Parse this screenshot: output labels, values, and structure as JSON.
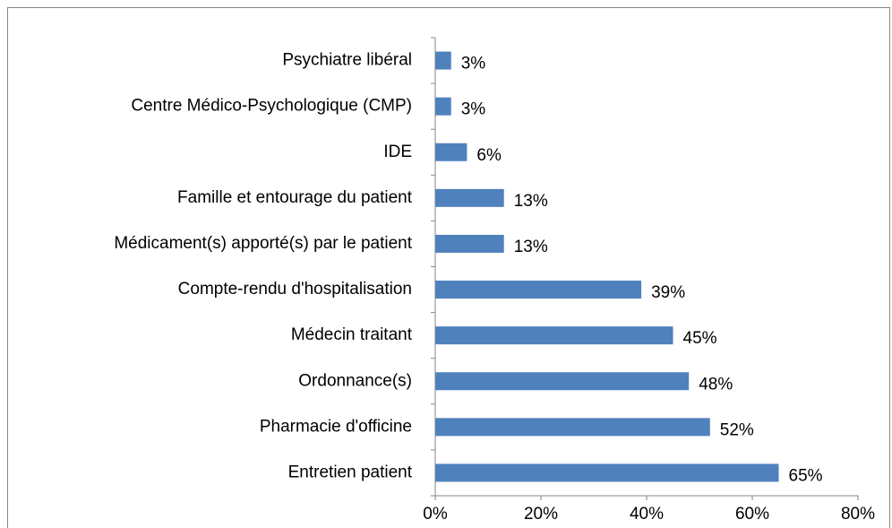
{
  "chart_data": {
    "type": "barh",
    "categories": [
      "Psychiatre libéral",
      "Centre Médico-Psychologique (CMP)",
      "IDE",
      "Famille et entourage du patient",
      "Médicament(s) apporté(s) par le patient",
      "Compte-rendu d'hospitalisation",
      "Médecin traitant",
      "Ordonnance(s)",
      "Pharmacie d'officine",
      "Entretien patient"
    ],
    "values": [
      3,
      3,
      6,
      13,
      13,
      39,
      45,
      48,
      52,
      65
    ],
    "value_labels": [
      "3%",
      "3%",
      "6%",
      "13%",
      "13%",
      "39%",
      "45%",
      "48%",
      "52%",
      "65%"
    ],
    "color": "#4f81bd",
    "xlim": [
      0,
      80
    ],
    "xticks": [
      {
        "value": 0,
        "label": "0%"
      },
      {
        "value": 20,
        "label": "20%"
      },
      {
        "value": 40,
        "label": "40%"
      },
      {
        "value": 60,
        "label": "60%"
      },
      {
        "value": 80,
        "label": "80%"
      }
    ],
    "grid": false
  }
}
